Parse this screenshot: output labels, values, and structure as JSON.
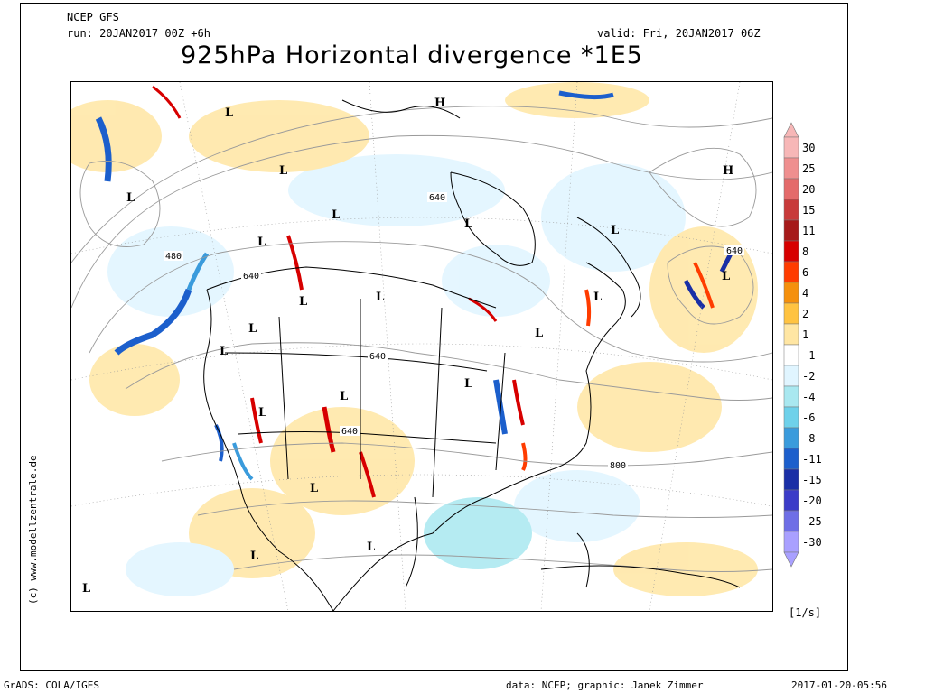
{
  "header": {
    "model": "NCEP GFS",
    "run": "run: 20JAN2017 00Z +6h",
    "valid": "valid: Fri, 20JAN2017 06Z",
    "title": "925hPa Horizontal divergence *1E5"
  },
  "colorbar": {
    "levels": [
      "30",
      "25",
      "20",
      "15",
      "11",
      "8",
      "6",
      "4",
      "2",
      "1",
      "-1",
      "-2",
      "-4",
      "-6",
      "-8",
      "-11",
      "-15",
      "-20",
      "-25",
      "-30"
    ],
    "colors": [
      "#f7b7b7",
      "#ef8f8f",
      "#e46a6a",
      "#c83a3a",
      "#a61a1a",
      "#d70000",
      "#ff3c00",
      "#f5900c",
      "#ffc341",
      "#ffe6a3",
      "#ffffff",
      "#e0f5ff",
      "#a9e8f0",
      "#6ed1ea",
      "#3a9bdc",
      "#1c5fcc",
      "#1a2fa6",
      "#3c3cc8",
      "#6e6ee6",
      "#a9a0ff"
    ],
    "units": "[1/s]"
  },
  "map": {
    "highs": [
      {
        "label": "H"
      },
      {
        "label": "H"
      }
    ],
    "lows": [
      {
        "label": "L"
      },
      {
        "label": "L"
      },
      {
        "label": "L"
      },
      {
        "label": "L"
      },
      {
        "label": "L"
      },
      {
        "label": "L"
      },
      {
        "label": "L"
      },
      {
        "label": "L"
      },
      {
        "label": "L"
      },
      {
        "label": "L"
      },
      {
        "label": "L"
      },
      {
        "label": "L"
      },
      {
        "label": "L"
      },
      {
        "label": "L"
      },
      {
        "label": "L"
      },
      {
        "label": "L"
      },
      {
        "label": "L"
      },
      {
        "label": "L"
      },
      {
        "label": "L"
      },
      {
        "label": "L"
      },
      {
        "label": "L"
      },
      {
        "label": "L"
      }
    ],
    "contour_labels": [
      "480",
      "640",
      "640",
      "640",
      "640",
      "640",
      "800"
    ]
  },
  "credit": "(c) www.modellzentrale.de",
  "footer": {
    "left": "GrADS: COLA/IGES",
    "middle": "data: NCEP; graphic: Janek Zimmer",
    "right": "2017-01-20-05:56"
  }
}
